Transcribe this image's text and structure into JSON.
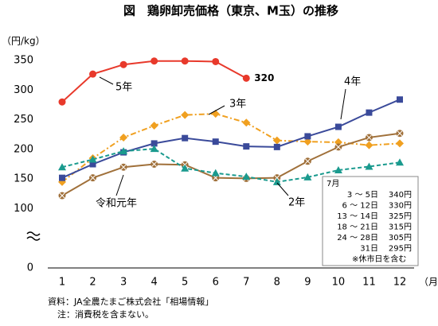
{
  "chart_data": {
    "type": "line",
    "title": "図　鶏卵卸売価格（東京、M玉）の推移",
    "y_label": "（円/kg）",
    "x_label": "（月）",
    "categories": [
      "1",
      "2",
      "3",
      "4",
      "5",
      "6",
      "7",
      "8",
      "9",
      "10",
      "11",
      "12"
    ],
    "ylim": [
      0,
      350
    ],
    "yticks": [
      0,
      100,
      150,
      200,
      250,
      300,
      350
    ],
    "axis_break": true,
    "series": [
      {
        "name": "5年",
        "color": "#e8392b",
        "marker": "circle",
        "dash": "solid",
        "values": [
          280,
          327,
          343,
          349,
          349,
          348,
          320,
          null,
          null,
          null,
          null,
          null
        ],
        "value_labels": [
          null,
          null,
          null,
          null,
          null,
          null,
          "320",
          null,
          null,
          null,
          null,
          null
        ]
      },
      {
        "name": "3年",
        "color": "#f0a020",
        "marker": "diamond",
        "dash": "dashdot",
        "values": [
          145,
          185,
          220,
          240,
          258,
          260,
          245,
          215,
          213,
          212,
          207,
          210
        ]
      },
      {
        "name": "4年",
        "color": "#3a4a9a",
        "marker": "square",
        "dash": "solid",
        "values": [
          152,
          175,
          195,
          210,
          219,
          213,
          205,
          204,
          222,
          238,
          262,
          284
        ]
      },
      {
        "name": "令和元年",
        "color": "#a0703a",
        "marker": "circlex",
        "dash": "solid",
        "values": [
          122,
          152,
          170,
          175,
          174,
          152,
          151,
          152,
          180,
          204,
          220,
          227
        ]
      },
      {
        "name": "2年",
        "color": "#1a9a8e",
        "marker": "triangle",
        "dash": "dashed",
        "values": [
          170,
          183,
          197,
          201,
          168,
          160,
          154,
          145,
          153,
          165,
          171,
          178
        ]
      }
    ],
    "note": {
      "title": "7月",
      "rows": [
        [
          "3 ～ 5日",
          "340円"
        ],
        [
          "6 ～ 12日",
          "330円"
        ],
        [
          "13 ～ 14日",
          "325円"
        ],
        [
          "18 ～ 21日",
          "315円"
        ],
        [
          "24 ～ 28日",
          "305円"
        ],
        [
          "31日",
          "295円"
        ]
      ],
      "footnote": "※休市日を含む"
    },
    "source": "資料：JA全農たまご株式会社「相場情報」",
    "footnote": "注：消費税を含まない。"
  }
}
